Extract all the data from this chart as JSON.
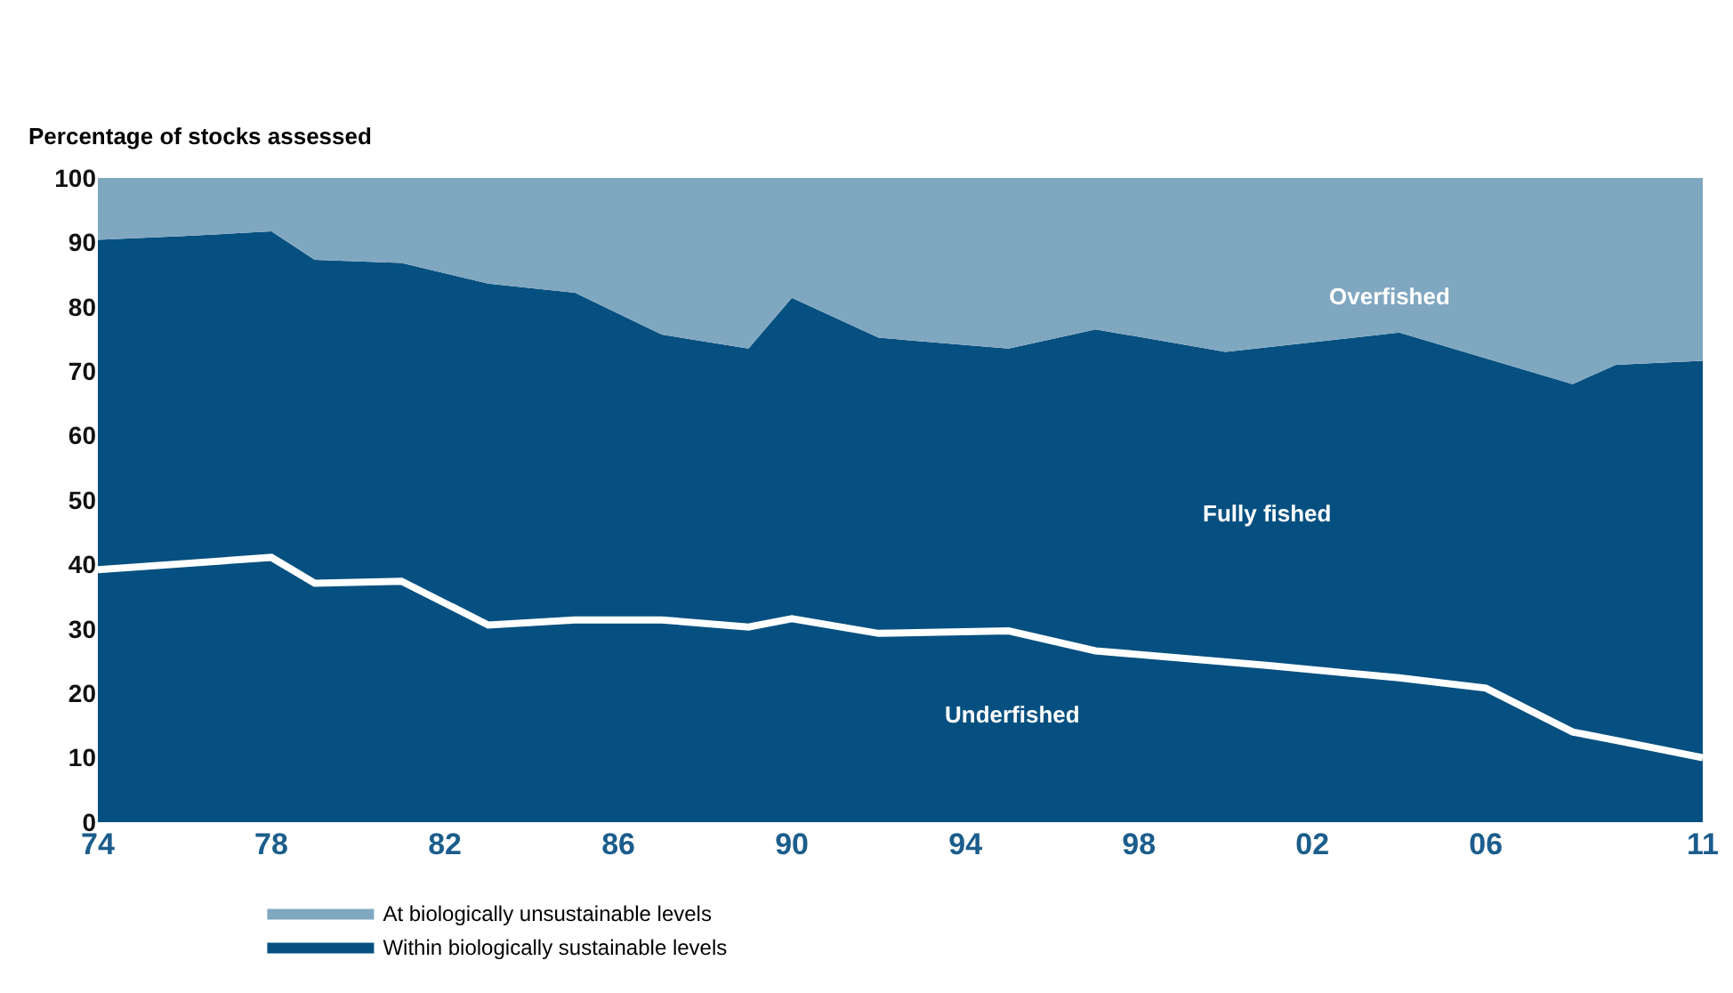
{
  "chart_data": {
    "type": "area",
    "ylabel": "Percentage of stocks assessed",
    "x": [
      1974,
      1976,
      1978,
      1979,
      1981,
      1983,
      1985,
      1987,
      1989,
      1990,
      1992,
      1995,
      1997,
      2000,
      2004,
      2006,
      2008,
      2009,
      2011
    ],
    "stacked": true,
    "series": [
      {
        "name": "Within biologically sustainable levels",
        "color": "#055080",
        "values": [
          90.4,
          91,
          91.7,
          87.3,
          86.8,
          83.6,
          82.2,
          75.7,
          73.5,
          81.4,
          75.2,
          73.5,
          76.5,
          73,
          76,
          72,
          68,
          71,
          71.6
        ]
      },
      {
        "name": "At biologically unsustainable levels",
        "color": "#80a7c0",
        "values": [
          9.6,
          9,
          8.3,
          12.7,
          13.2,
          16.4,
          17.8,
          24.3,
          26.5,
          18.6,
          24.8,
          26.5,
          23.5,
          27,
          24,
          28,
          32,
          29,
          28.4
        ]
      },
      {
        "type": "line",
        "color": "#ffffff",
        "x": [
          1974,
          1978,
          1979,
          1981,
          1983,
          1985,
          1987,
          1989,
          1990,
          1992,
          1995,
          1997,
          2001,
          2004,
          2006,
          2008,
          2009,
          2011
        ],
        "values": [
          39.2,
          41.1,
          37.1,
          37.4,
          30.6,
          31.4,
          31.4,
          30.3,
          31.6,
          29.3,
          29.7,
          26.6,
          24.3,
          22.4,
          20.8,
          14,
          12.7,
          10
        ]
      }
    ],
    "annotations": [
      "Overfished",
      "Fully fished",
      "Underfished"
    ],
    "xlim": [
      1974,
      2011
    ],
    "xticks": [
      {
        "value": 1974,
        "label": "74"
      },
      {
        "value": 1978,
        "label": "78"
      },
      {
        "value": 1982,
        "label": "82"
      },
      {
        "value": 1986,
        "label": "86"
      },
      {
        "value": 1990,
        "label": "90"
      },
      {
        "value": 1994,
        "label": "94"
      },
      {
        "value": 1998,
        "label": "98"
      },
      {
        "value": 2002,
        "label": "02"
      },
      {
        "value": 2006,
        "label": "06"
      },
      {
        "value": 2011,
        "label": "11"
      }
    ],
    "ylim": [
      0,
      100
    ],
    "yticks": [
      0,
      10,
      20,
      30,
      40,
      50,
      60,
      70,
      80,
      90,
      100
    ],
    "legend": "bottom",
    "marker": "none",
    "line_style": "solid"
  }
}
